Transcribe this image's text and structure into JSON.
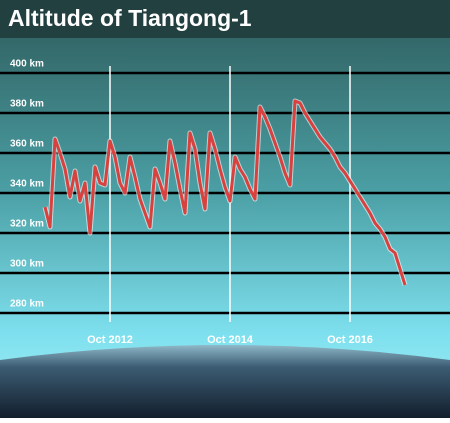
{
  "chart_data": {
    "type": "line",
    "title": "Altitude of Tiangong-1",
    "xlim": [
      "2010-12",
      "2018-06"
    ],
    "xticks": [
      {
        "value": "2012-10",
        "label": "Oct 2012"
      },
      {
        "value": "2014-10",
        "label": "Oct 2014"
      },
      {
        "value": "2016-10",
        "label": "Oct 2016"
      }
    ],
    "ylim": [
      270,
      410
    ],
    "yticks": [
      {
        "value": 280,
        "label": "280 km"
      },
      {
        "value": 300,
        "label": "300 km"
      },
      {
        "value": 320,
        "label": "320 km"
      },
      {
        "value": 340,
        "label": "340 km"
      },
      {
        "value": 360,
        "label": "360 km"
      },
      {
        "value": 380,
        "label": "380 km"
      },
      {
        "value": 400,
        "label": "400 km"
      }
    ],
    "grid": true,
    "x": [
      "2011-09",
      "2011-10",
      "2011-11",
      "2011-12",
      "2012-01",
      "2012-02",
      "2012-03",
      "2012-04",
      "2012-05",
      "2012-06",
      "2012-07",
      "2012-08",
      "2012-09",
      "2012-10",
      "2012-11",
      "2012-12",
      "2013-01",
      "2013-02",
      "2013-03",
      "2013-04",
      "2013-05",
      "2013-06",
      "2013-07",
      "2013-08",
      "2013-09",
      "2013-10",
      "2013-11",
      "2013-12",
      "2014-01",
      "2014-02",
      "2014-03",
      "2014-04",
      "2014-05",
      "2014-06",
      "2014-07",
      "2014-08",
      "2014-09",
      "2014-10",
      "2014-11",
      "2014-12",
      "2015-01",
      "2015-02",
      "2015-03",
      "2015-04",
      "2015-05",
      "2015-06",
      "2015-07",
      "2015-08",
      "2015-09",
      "2015-10",
      "2015-11",
      "2015-12",
      "2016-01",
      "2016-02",
      "2016-03",
      "2016-04",
      "2016-05",
      "2016-06",
      "2016-07",
      "2016-08",
      "2016-09",
      "2016-10",
      "2016-11",
      "2016-12",
      "2017-01",
      "2017-02",
      "2017-03",
      "2017-04",
      "2017-05",
      "2017-06",
      "2017-07",
      "2017-08",
      "2017-09"
    ],
    "series": [
      {
        "color": "#d9413f",
        "values": [
          333,
          323,
          367,
          360,
          352,
          338,
          351,
          336,
          345,
          320,
          353,
          345,
          344,
          366,
          358,
          345,
          340,
          358,
          348,
          337,
          330,
          323,
          352,
          345,
          337,
          366,
          355,
          342,
          330,
          370,
          362,
          345,
          332,
          370,
          362,
          352,
          343,
          336,
          358,
          352,
          348,
          342,
          337,
          383,
          378,
          372,
          365,
          358,
          350,
          344,
          386,
          385,
          380,
          376,
          372,
          368,
          365,
          362,
          358,
          353,
          350,
          346,
          342,
          338,
          334,
          330,
          325,
          322,
          318,
          312,
          310,
          302,
          294
        ]
      }
    ]
  }
}
